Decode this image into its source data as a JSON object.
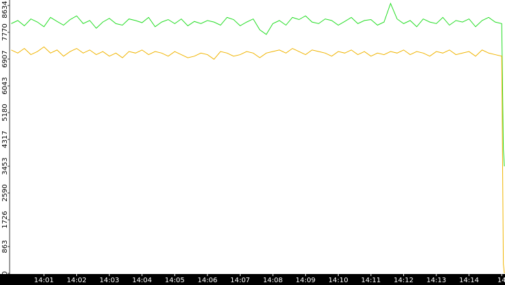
{
  "chart_data": {
    "type": "line",
    "x": [
      0,
      0.2,
      0.4,
      0.6,
      0.8,
      1.0,
      1.2,
      1.4,
      1.6,
      1.8,
      2.0,
      2.2,
      2.4,
      2.6,
      2.8,
      3.0,
      3.2,
      3.4,
      3.6,
      3.8,
      4.0,
      4.2,
      4.4,
      4.6,
      4.8,
      5.0,
      5.2,
      5.4,
      5.6,
      5.8,
      6.0,
      6.2,
      6.4,
      6.6,
      6.8,
      7.0,
      7.2,
      7.4,
      7.6,
      7.8,
      8.0,
      8.2,
      8.4,
      8.6,
      8.8,
      9.0,
      9.2,
      9.4,
      9.6,
      9.8,
      10.0,
      10.2,
      10.4,
      10.6,
      10.8,
      11.0,
      11.2,
      11.4,
      11.6,
      11.8,
      12.0,
      12.2,
      12.4,
      12.6,
      12.8,
      13.0,
      13.2,
      13.4,
      13.6,
      13.8,
      14.0,
      14.2,
      14.4,
      14.6,
      14.8,
      15.0,
      15.05,
      15.08
    ],
    "series": [
      {
        "color": "#22dd22",
        "values": [
          8050,
          8150,
          7980,
          8200,
          8100,
          7950,
          8250,
          8120,
          8000,
          8180,
          8300,
          8050,
          8150,
          7900,
          8100,
          8220,
          8050,
          8000,
          8200,
          8150,
          8080,
          8250,
          7950,
          8100,
          8180,
          8050,
          8200,
          7980,
          8120,
          8050,
          8150,
          8100,
          8000,
          8250,
          8180,
          7980,
          8100,
          8200,
          7850,
          7700,
          8050,
          8150,
          8000,
          8250,
          8180,
          8300,
          8100,
          8050,
          8200,
          8150,
          8000,
          8120,
          8250,
          8050,
          8150,
          8180,
          8000,
          8100,
          8700,
          8200,
          8050,
          8150,
          7950,
          8200,
          8100,
          8050,
          8250,
          8000,
          8150,
          8100,
          8200,
          7950,
          8150,
          8250,
          8100,
          8050,
          4000,
          3450
        ]
      },
      {
        "color": "#f0b400",
        "values": [
          7200,
          7100,
          7250,
          7050,
          7150,
          7300,
          7100,
          7200,
          7000,
          7150,
          7250,
          7100,
          7200,
          7050,
          7150,
          7000,
          7100,
          6950,
          7150,
          7100,
          7200,
          7050,
          7150,
          7100,
          7000,
          7150,
          7050,
          6950,
          7000,
          7100,
          7050,
          6900,
          7150,
          7100,
          7000,
          7050,
          7150,
          7100,
          6950,
          7100,
          7150,
          7200,
          7100,
          7250,
          7150,
          7050,
          7200,
          7150,
          7100,
          7000,
          7150,
          7100,
          7200,
          7050,
          7150,
          7000,
          7100,
          7050,
          7150,
          7100,
          7200,
          7050,
          7150,
          7100,
          7000,
          7150,
          7100,
          7200,
          7050,
          7100,
          7150,
          7000,
          7200,
          7100,
          7050,
          7000,
          300,
          0
        ]
      }
    ],
    "xlim": [
      -0.05,
      15.1
    ],
    "xticks": [
      {
        "value": 1,
        "label": "14:01"
      },
      {
        "value": 2,
        "label": "14:02"
      },
      {
        "value": 3,
        "label": "14:03"
      },
      {
        "value": 4,
        "label": "14:04"
      },
      {
        "value": 5,
        "label": "14:05"
      },
      {
        "value": 6,
        "label": "14:06"
      },
      {
        "value": 7,
        "label": "14:07"
      },
      {
        "value": 8,
        "label": "14:08"
      },
      {
        "value": 9,
        "label": "14:09"
      },
      {
        "value": 10,
        "label": "14:10"
      },
      {
        "value": 11,
        "label": "14:11"
      },
      {
        "value": 12,
        "label": "14:12"
      },
      {
        "value": 13,
        "label": "14:13"
      },
      {
        "value": 14,
        "label": "14:14"
      },
      {
        "value": 15,
        "label": "14"
      }
    ],
    "ylim": [
      0,
      8634
    ],
    "yticks": [
      0,
      863,
      1726,
      2590,
      3453,
      4317,
      5180,
      6043,
      6907,
      7770,
      8634
    ]
  }
}
